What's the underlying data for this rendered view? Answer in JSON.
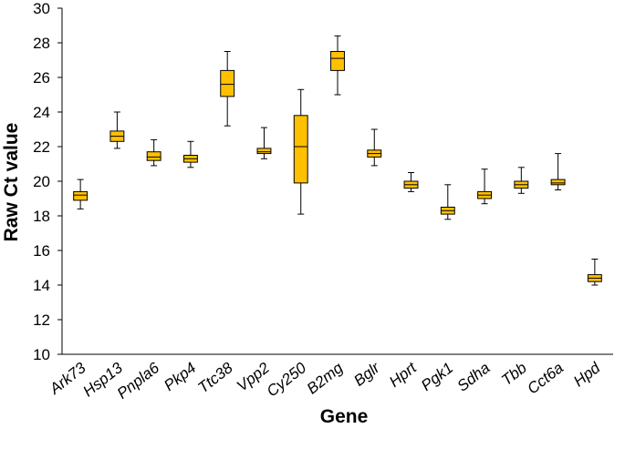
{
  "chart_data": {
    "type": "boxplot",
    "title": "",
    "xlabel": "Gene",
    "ylabel": "Raw Ct value",
    "ylim": [
      10,
      30
    ],
    "yticks": [
      10,
      12,
      14,
      16,
      18,
      20,
      22,
      24,
      26,
      28,
      30
    ],
    "grid": false,
    "colors": {
      "box_fill": "#FFC000",
      "box_stroke": "#000000",
      "axis": "#000000"
    },
    "categories": [
      "Ark73",
      "Hsp13",
      "Pnpla6",
      "Pkp4",
      "Ttc38",
      "Vpp2",
      "Cy250",
      "B2mg",
      "Bglr",
      "Hprt",
      "Pgk1",
      "Sdha",
      "Tbb",
      "Cct6a",
      "Hpd"
    ],
    "boxes": [
      {
        "gene": "Ark73",
        "min": 18.4,
        "q1": 18.9,
        "median": 19.2,
        "q3": 19.4,
        "max": 20.1
      },
      {
        "gene": "Hsp13",
        "min": 21.9,
        "q1": 22.3,
        "median": 22.6,
        "q3": 22.9,
        "max": 24.0
      },
      {
        "gene": "Pnpla6",
        "min": 20.9,
        "q1": 21.2,
        "median": 21.4,
        "q3": 21.7,
        "max": 22.4
      },
      {
        "gene": "Pkp4",
        "min": 20.8,
        "q1": 21.1,
        "median": 21.3,
        "q3": 21.5,
        "max": 22.3
      },
      {
        "gene": "Ttc38",
        "min": 23.2,
        "q1": 24.9,
        "median": 25.6,
        "q3": 26.4,
        "max": 27.5
      },
      {
        "gene": "Vpp2",
        "min": 21.3,
        "q1": 21.6,
        "median": 21.7,
        "q3": 21.9,
        "max": 23.1
      },
      {
        "gene": "Cy250",
        "min": 18.1,
        "q1": 19.9,
        "median": 22.0,
        "q3": 23.8,
        "max": 25.3
      },
      {
        "gene": "B2mg",
        "min": 25.0,
        "q1": 26.4,
        "median": 27.1,
        "q3": 27.5,
        "max": 28.4
      },
      {
        "gene": "Bglr",
        "min": 20.9,
        "q1": 21.4,
        "median": 21.6,
        "q3": 21.8,
        "max": 23.0
      },
      {
        "gene": "Hprt",
        "min": 19.4,
        "q1": 19.6,
        "median": 19.8,
        "q3": 20.0,
        "max": 20.5
      },
      {
        "gene": "Pgk1",
        "min": 17.8,
        "q1": 18.1,
        "median": 18.3,
        "q3": 18.5,
        "max": 19.8
      },
      {
        "gene": "Sdha",
        "min": 18.7,
        "q1": 19.0,
        "median": 19.2,
        "q3": 19.4,
        "max": 20.7
      },
      {
        "gene": "Tbb",
        "min": 19.3,
        "q1": 19.6,
        "median": 19.8,
        "q3": 20.0,
        "max": 20.8
      },
      {
        "gene": "Cct6a",
        "min": 19.5,
        "q1": 19.8,
        "median": 19.9,
        "q3": 20.1,
        "max": 21.6
      },
      {
        "gene": "Hpd",
        "min": 14.0,
        "q1": 14.2,
        "median": 14.4,
        "q3": 14.6,
        "max": 15.5
      }
    ]
  }
}
